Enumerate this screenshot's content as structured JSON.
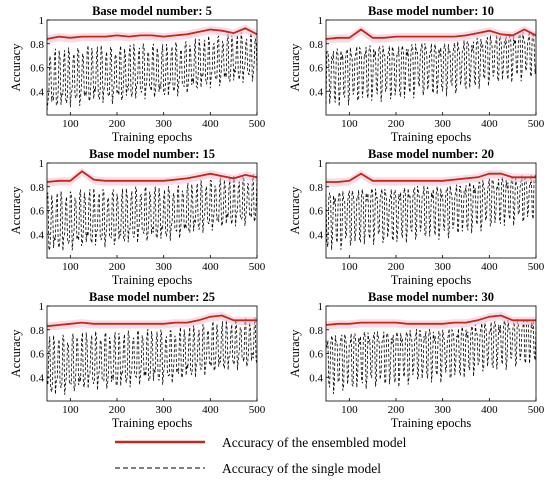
{
  "chart_data": [
    {
      "type": "line",
      "title": "Base model number: 5",
      "xlabel": "Training epochs",
      "ylabel": "Accuracy",
      "xlim": [
        50,
        500
      ],
      "ylim": [
        0.2,
        1.0
      ],
      "xticks": [
        "100",
        "200",
        "300",
        "400",
        "500"
      ],
      "yticks": [
        "0.4",
        "0.6",
        "0.8",
        "1"
      ],
      "series": [
        {
          "name": "Accuracy of the ensembled model",
          "x": [
            50,
            75,
            100,
            125,
            150,
            175,
            200,
            225,
            250,
            275,
            300,
            325,
            350,
            375,
            400,
            425,
            450,
            475,
            500
          ],
          "values": [
            0.84,
            0.86,
            0.85,
            0.86,
            0.86,
            0.86,
            0.87,
            0.86,
            0.87,
            0.87,
            0.86,
            0.87,
            0.88,
            0.9,
            0.92,
            0.91,
            0.89,
            0.93,
            0.88
          ]
        },
        {
          "name": "Accuracy of the single model",
          "x": [
            50,
            100,
            150,
            200,
            250,
            300,
            350,
            400,
            450,
            500
          ],
          "values": [
            0.7,
            0.72,
            0.74,
            0.73,
            0.76,
            0.75,
            0.78,
            0.82,
            0.84,
            0.86
          ]
        }
      ]
    },
    {
      "type": "line",
      "title": "Base model number: 10",
      "xlabel": "Training epochs",
      "ylabel": "Accuracy",
      "xlim": [
        50,
        500
      ],
      "ylim": [
        0.2,
        1.0
      ],
      "xticks": [
        "100",
        "200",
        "300",
        "400",
        "500"
      ],
      "yticks": [
        "0.4",
        "0.6",
        "0.8",
        "1"
      ],
      "series": [
        {
          "name": "Accuracy of the ensembled model",
          "x": [
            50,
            75,
            100,
            125,
            150,
            175,
            200,
            225,
            250,
            275,
            300,
            325,
            350,
            375,
            400,
            425,
            450,
            475,
            500
          ],
          "values": [
            0.84,
            0.85,
            0.85,
            0.92,
            0.85,
            0.85,
            0.86,
            0.86,
            0.86,
            0.86,
            0.86,
            0.86,
            0.87,
            0.89,
            0.91,
            0.88,
            0.87,
            0.92,
            0.87
          ]
        },
        {
          "name": "Accuracy of the single model",
          "x": [
            50,
            100,
            150,
            200,
            250,
            300,
            350,
            400,
            450,
            500
          ],
          "values": [
            0.7,
            0.72,
            0.74,
            0.73,
            0.76,
            0.75,
            0.78,
            0.82,
            0.84,
            0.86
          ]
        }
      ]
    },
    {
      "type": "line",
      "title": "Base model number: 15",
      "xlabel": "Training epochs",
      "ylabel": "Accuracy",
      "xlim": [
        50,
        500
      ],
      "ylim": [
        0.2,
        1.0
      ],
      "xticks": [
        "100",
        "200",
        "300",
        "400",
        "500"
      ],
      "yticks": [
        "0.4",
        "0.6",
        "0.8",
        "1"
      ],
      "series": [
        {
          "name": "Accuracy of the ensembled model",
          "x": [
            50,
            75,
            100,
            125,
            150,
            175,
            200,
            225,
            250,
            275,
            300,
            325,
            350,
            375,
            400,
            425,
            450,
            475,
            500
          ],
          "values": [
            0.84,
            0.85,
            0.85,
            0.93,
            0.86,
            0.85,
            0.85,
            0.85,
            0.85,
            0.85,
            0.85,
            0.86,
            0.87,
            0.89,
            0.91,
            0.89,
            0.87,
            0.9,
            0.88
          ]
        },
        {
          "name": "Accuracy of the single model",
          "x": [
            50,
            100,
            150,
            200,
            250,
            300,
            350,
            400,
            450,
            500
          ],
          "values": [
            0.7,
            0.72,
            0.74,
            0.73,
            0.76,
            0.75,
            0.78,
            0.82,
            0.84,
            0.86
          ]
        }
      ]
    },
    {
      "type": "line",
      "title": "Base model number: 20",
      "xlabel": "Training epochs",
      "ylabel": "Accuracy",
      "xlim": [
        50,
        500
      ],
      "ylim": [
        0.2,
        1.0
      ],
      "xticks": [
        "100",
        "200",
        "300",
        "400",
        "500"
      ],
      "yticks": [
        "0.4",
        "0.6",
        "0.8",
        "1"
      ],
      "series": [
        {
          "name": "Accuracy of the ensembled model",
          "x": [
            50,
            75,
            100,
            125,
            150,
            175,
            200,
            225,
            250,
            275,
            300,
            325,
            350,
            375,
            400,
            425,
            450,
            475,
            500
          ],
          "values": [
            0.84,
            0.84,
            0.85,
            0.91,
            0.85,
            0.85,
            0.85,
            0.85,
            0.85,
            0.85,
            0.85,
            0.86,
            0.87,
            0.88,
            0.91,
            0.91,
            0.88,
            0.88,
            0.88
          ]
        },
        {
          "name": "Accuracy of the single model",
          "x": [
            50,
            100,
            150,
            200,
            250,
            300,
            350,
            400,
            450,
            500
          ],
          "values": [
            0.7,
            0.72,
            0.74,
            0.73,
            0.76,
            0.75,
            0.78,
            0.82,
            0.84,
            0.86
          ]
        }
      ]
    },
    {
      "type": "line",
      "title": "Base model number: 25",
      "xlabel": "Training epochs",
      "ylabel": "Accuracy",
      "xlim": [
        50,
        500
      ],
      "ylim": [
        0.2,
        1.0
      ],
      "xticks": [
        "100",
        "200",
        "300",
        "400",
        "500"
      ],
      "yticks": [
        "0.4",
        "0.6",
        "0.8",
        "1"
      ],
      "series": [
        {
          "name": "Accuracy of the ensembled model",
          "x": [
            50,
            75,
            100,
            125,
            150,
            175,
            200,
            225,
            250,
            275,
            300,
            325,
            350,
            375,
            400,
            425,
            450,
            475,
            500
          ],
          "values": [
            0.83,
            0.84,
            0.85,
            0.86,
            0.85,
            0.85,
            0.85,
            0.85,
            0.85,
            0.85,
            0.85,
            0.86,
            0.86,
            0.88,
            0.91,
            0.92,
            0.88,
            0.88,
            0.88
          ]
        },
        {
          "name": "Accuracy of the single model",
          "x": [
            50,
            100,
            150,
            200,
            250,
            300,
            350,
            400,
            450,
            500
          ],
          "values": [
            0.7,
            0.72,
            0.74,
            0.73,
            0.76,
            0.75,
            0.78,
            0.82,
            0.84,
            0.86
          ]
        }
      ]
    },
    {
      "type": "line",
      "title": "Base model number: 30",
      "xlabel": "Training epochs",
      "ylabel": "Accuracy",
      "xlim": [
        50,
        500
      ],
      "ylim": [
        0.2,
        1.0
      ],
      "xticks": [
        "100",
        "200",
        "300",
        "400",
        "500"
      ],
      "yticks": [
        "0.4",
        "0.6",
        "0.8",
        "1"
      ],
      "series": [
        {
          "name": "Accuracy of the ensembled model",
          "x": [
            50,
            75,
            100,
            125,
            150,
            175,
            200,
            225,
            250,
            275,
            300,
            325,
            350,
            375,
            400,
            425,
            450,
            475,
            500
          ],
          "values": [
            0.84,
            0.85,
            0.85,
            0.86,
            0.86,
            0.86,
            0.86,
            0.85,
            0.85,
            0.85,
            0.85,
            0.86,
            0.86,
            0.88,
            0.91,
            0.92,
            0.88,
            0.88,
            0.88
          ]
        },
        {
          "name": "Accuracy of the single model",
          "x": [
            50,
            100,
            150,
            200,
            250,
            300,
            350,
            400,
            450,
            500
          ],
          "values": [
            0.7,
            0.72,
            0.74,
            0.73,
            0.76,
            0.75,
            0.78,
            0.82,
            0.84,
            0.86
          ]
        }
      ]
    }
  ],
  "legend": {
    "ensemble_label": "Accuracy of the ensembled model",
    "single_label": "Accuracy of the single model"
  },
  "colors": {
    "ensemble": "#c0281c",
    "single": "#000000",
    "band": "#f6c3d4"
  }
}
